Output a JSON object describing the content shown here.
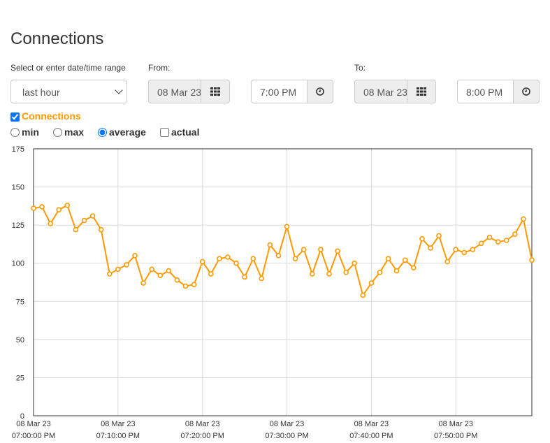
{
  "page": {
    "title": "Connections"
  },
  "range": {
    "label": "Select or enter date/time range",
    "selected": "last hour"
  },
  "from": {
    "label": "From:",
    "date": "08 Mar 23",
    "time": "7:00 PM"
  },
  "to": {
    "label": "To:",
    "date": "08 Mar 23",
    "time": "8:00 PM"
  },
  "series_toggle": {
    "label": "Connections",
    "checked": true
  },
  "aggregation": {
    "options": [
      {
        "label": "min",
        "type": "radio",
        "checked": false
      },
      {
        "label": "max",
        "type": "radio",
        "checked": false
      },
      {
        "label": "average",
        "type": "radio",
        "checked": true
      },
      {
        "label": "actual",
        "type": "checkbox",
        "checked": false
      }
    ]
  },
  "colors": {
    "series": "#ff9900",
    "grid": "#d9d9d9"
  },
  "icons": {
    "date": "calendar-grid-icon",
    "time": "clock-icon"
  },
  "chart_data": {
    "type": "line",
    "title": "",
    "xlabel": "",
    "ylabel": "",
    "ylim": [
      0,
      175
    ],
    "yticks": [
      0,
      25,
      50,
      75,
      100,
      125,
      150,
      175
    ],
    "xlim": [
      0,
      59
    ],
    "xtick_minutes": [
      0,
      10,
      20,
      30,
      40,
      50
    ],
    "xtick_labels": [
      [
        "08 Mar 23",
        "07:00:00 PM"
      ],
      [
        "08 Mar 23",
        "07:10:00 PM"
      ],
      [
        "08 Mar 23",
        "07:20:00 PM"
      ],
      [
        "08 Mar 23",
        "07:30:00 PM"
      ],
      [
        "08 Mar 23",
        "07:40:00 PM"
      ],
      [
        "08 Mar 23",
        "07:50:00 PM"
      ]
    ],
    "grid": true,
    "series": [
      {
        "name": "Connections",
        "color": "#ff9900",
        "values": [
          136,
          137,
          126,
          135,
          138,
          122,
          128,
          131,
          122,
          93,
          96,
          99,
          105,
          87,
          96,
          92,
          95,
          89,
          85,
          86,
          101,
          93,
          103,
          104,
          100,
          91,
          103,
          90,
          112,
          105,
          124,
          103,
          109,
          93,
          109,
          93,
          108,
          94,
          100,
          79,
          87,
          94,
          103,
          95,
          102,
          97,
          116,
          110,
          118,
          101,
          109,
          107,
          109,
          113,
          117,
          114,
          115,
          119,
          129,
          102
        ]
      }
    ]
  }
}
